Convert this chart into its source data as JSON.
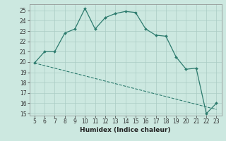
{
  "xlabel": "Humidex (Indice chaleur)",
  "x": [
    5,
    6,
    7,
    8,
    9,
    10,
    11,
    12,
    13,
    14,
    15,
    16,
    17,
    18,
    19,
    20,
    21,
    22,
    23
  ],
  "y_curve": [
    19.9,
    21.0,
    21.0,
    22.8,
    23.2,
    25.2,
    23.2,
    24.3,
    24.7,
    24.9,
    24.8,
    23.2,
    22.6,
    22.5,
    20.5,
    19.3,
    19.4,
    15.0,
    16.0
  ],
  "y_line": [
    19.9,
    19.65,
    19.4,
    19.15,
    18.9,
    18.65,
    18.4,
    18.15,
    17.9,
    17.65,
    17.4,
    17.15,
    16.9,
    16.65,
    16.4,
    16.15,
    15.9,
    15.65,
    15.4
  ],
  "color": "#2d7b6e",
  "bg_color": "#cce8e0",
  "grid_color": "#aaccc4",
  "ylim": [
    14.8,
    25.6
  ],
  "xlim": [
    4.5,
    23.5
  ],
  "yticks": [
    15,
    16,
    17,
    18,
    19,
    20,
    21,
    22,
    23,
    24,
    25
  ],
  "xticks": [
    5,
    6,
    7,
    8,
    9,
    10,
    11,
    12,
    13,
    14,
    15,
    16,
    17,
    18,
    19,
    20,
    21,
    22,
    23
  ]
}
